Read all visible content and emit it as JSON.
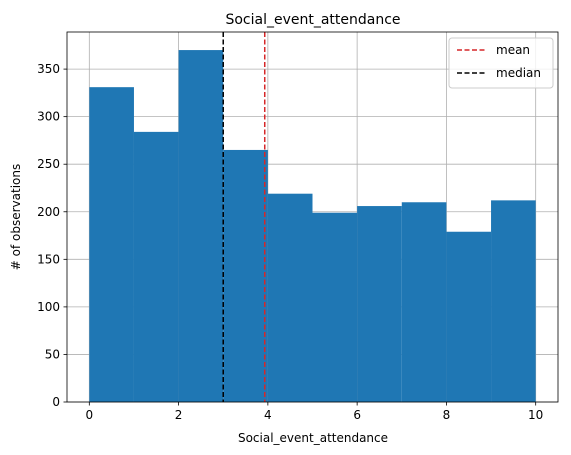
{
  "chart_data": {
    "type": "bar",
    "title": "Social_event_attendance",
    "xlabel": "Social_event_attendance",
    "ylabel": "# of observations",
    "bins": [
      {
        "start": 0,
        "end": 1,
        "count": 331
      },
      {
        "start": 1,
        "end": 2,
        "count": 284
      },
      {
        "start": 2,
        "end": 3,
        "count": 370
      },
      {
        "start": 3,
        "end": 4,
        "count": 265
      },
      {
        "start": 4,
        "end": 5,
        "count": 219
      },
      {
        "start": 5,
        "end": 6,
        "count": 199
      },
      {
        "start": 6,
        "end": 7,
        "count": 206
      },
      {
        "start": 7,
        "end": 8,
        "count": 210
      },
      {
        "start": 8,
        "end": 9,
        "count": 179
      },
      {
        "start": 9,
        "end": 10,
        "count": 212
      }
    ],
    "xlim": [
      -0.5,
      10.5
    ],
    "ylim": [
      0,
      389
    ],
    "xticks": [
      0,
      2,
      4,
      6,
      8,
      10
    ],
    "yticks": [
      0,
      50,
      100,
      150,
      200,
      250,
      300,
      350
    ],
    "grid": true,
    "bar_color": "#1f77b4",
    "reference_lines": [
      {
        "name": "mean",
        "x": 3.93,
        "color": "#d62728",
        "style": "dashed"
      },
      {
        "name": "median",
        "x": 3.0,
        "color": "#000000",
        "style": "dashed"
      }
    ],
    "legend": {
      "position": "top-right",
      "entries": [
        "mean",
        "median"
      ]
    }
  }
}
